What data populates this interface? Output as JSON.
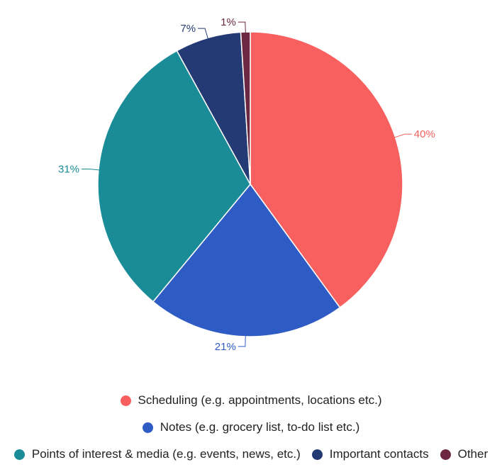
{
  "chart_data": {
    "type": "pie",
    "categories": [
      "Scheduling (e.g. appointments, locations etc.)",
      "Notes (e.g. grocery list, to-do list etc.)",
      "Points of interest & media (e.g. events, news, etc.)",
      "Important contacts",
      "Other"
    ],
    "values": [
      40,
      21,
      31,
      7,
      1
    ],
    "value_labels": [
      "40%",
      "21%",
      "31%",
      "7%",
      "1%"
    ],
    "colors": [
      "#f8605f",
      "#2e5bc4",
      "#1a8c98",
      "#243a74",
      "#6b2840"
    ],
    "start_angle_deg": 0,
    "direction": "clockwise",
    "legend_position": "bottom"
  },
  "legend": {
    "rows": [
      [
        0
      ],
      [
        1
      ],
      [
        2,
        3,
        4
      ]
    ]
  }
}
